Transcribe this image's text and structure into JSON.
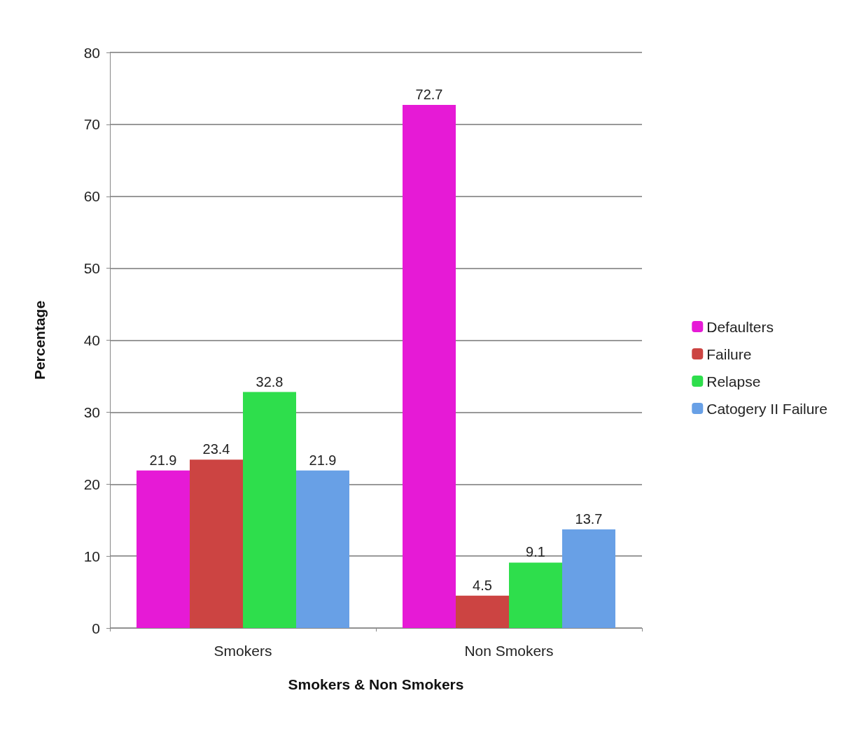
{
  "chart_data": {
    "type": "bar",
    "xlabel": "Smokers & Non Smokers",
    "ylabel": "Percentage",
    "categories": [
      "Smokers",
      "Non Smokers"
    ],
    "series": [
      {
        "name": "Defaulters",
        "color": "#e61ad6",
        "values": [
          21.9,
          72.7
        ]
      },
      {
        "name": "Failure",
        "color": "#cc4442",
        "values": [
          23.4,
          4.5
        ]
      },
      {
        "name": "Relapse",
        "color": "#2ede4c",
        "values": [
          32.8,
          9.1
        ]
      },
      {
        "name": "Catogery II Failure",
        "color": "#68a0e6",
        "values": [
          21.9,
          13.7
        ]
      }
    ],
    "ylim": [
      0,
      80
    ],
    "yticks": [
      0,
      10,
      20,
      30,
      40,
      50,
      60,
      70,
      80
    ],
    "grid": "y",
    "legend": "right",
    "data_labels": true
  }
}
